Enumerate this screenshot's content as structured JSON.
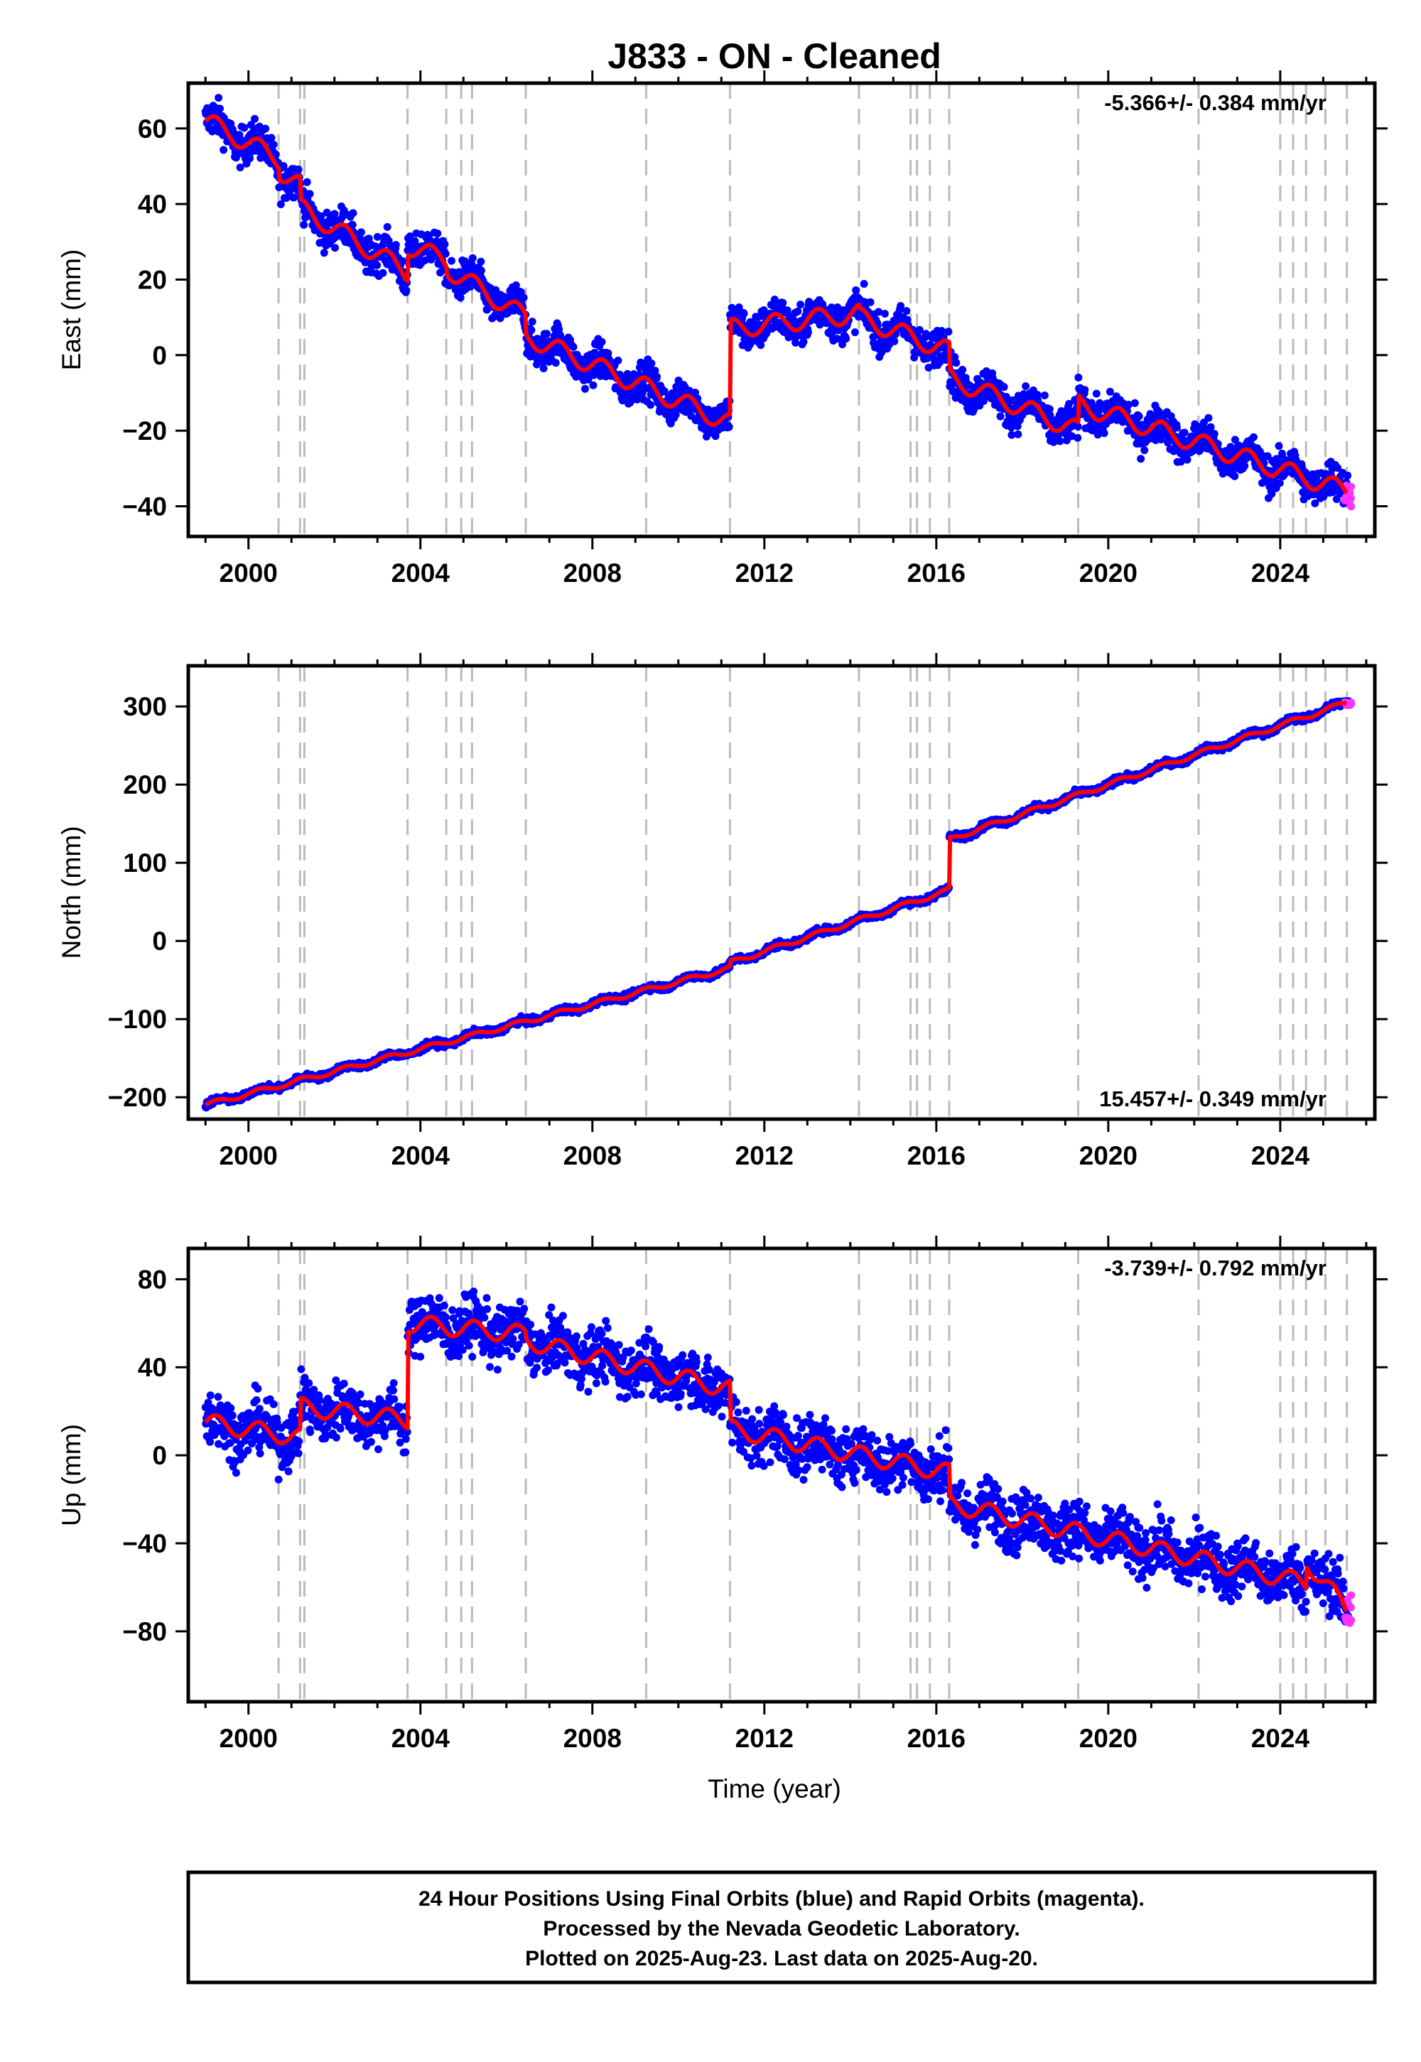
{
  "title": "J833  - ON - Cleaned",
  "x_axis": {
    "label": "Time (year)",
    "range": [
      1998.6,
      2026.2
    ],
    "ticks": [
      2000,
      2004,
      2008,
      2012,
      2016,
      2020,
      2024
    ],
    "tick_labels": [
      "2000",
      "2004",
      "2008",
      "2012",
      "2016",
      "2020",
      "2024"
    ]
  },
  "event_lines": [
    2000.7,
    2001.2,
    2001.3,
    2003.7,
    2004.6,
    2004.95,
    2005.2,
    2006.45,
    2009.25,
    2011.2,
    2014.2,
    2015.4,
    2015.55,
    2015.85,
    2016.3,
    2019.3,
    2022.1,
    2024.0,
    2024.3,
    2024.6,
    2025.05,
    2025.55
  ],
  "chart_data": [
    {
      "type": "scatter",
      "name": "east",
      "ylabel": "East (mm)",
      "ylim": [
        -48,
        72
      ],
      "yticks": [
        -40,
        -20,
        0,
        20,
        40,
        60
      ],
      "ytick_labels": [
        "−40",
        "−20",
        "0",
        "20",
        "40",
        "60"
      ],
      "rate_text": "-5.366+/- 0.384 mm/yr",
      "rate_position": "top-right",
      "model": {
        "segments": [
          {
            "start": 1999.0,
            "end": 2000.7,
            "v0": 62,
            "v1": 52
          },
          {
            "start": 2000.7,
            "end": 2001.2,
            "v0": 49,
            "v1": 45
          },
          {
            "start": 2001.2,
            "end": 2003.7,
            "v0": 39,
            "v1": 22
          },
          {
            "start": 2003.7,
            "end": 2004.6,
            "v0": 29,
            "v1": 25
          },
          {
            "start": 2004.6,
            "end": 2006.45,
            "v0": 23,
            "v1": 10
          },
          {
            "start": 2006.45,
            "end": 2011.2,
            "v0": 5,
            "v1": -18
          },
          {
            "start": 2011.2,
            "end": 2014.2,
            "v0": 7,
            "v1": 11
          },
          {
            "start": 2014.2,
            "end": 2016.3,
            "v0": 10,
            "v1": 1
          },
          {
            "start": 2016.3,
            "end": 2019.3,
            "v0": -6,
            "v1": -20
          },
          {
            "start": 2019.3,
            "end": 2025.55,
            "v0": -13,
            "v1": -36
          }
        ],
        "seasonal_amplitude": 2.5,
        "color": "#ff0000"
      },
      "scatter_spread": 3.5,
      "final_color": "#0000ff",
      "rapid_color": "#ff33ff"
    },
    {
      "type": "scatter",
      "name": "north",
      "ylabel": "North (mm)",
      "ylim": [
        -228,
        352
      ],
      "yticks": [
        -200,
        -100,
        0,
        100,
        200,
        300
      ],
      "ytick_labels": [
        "−200",
        "−100",
        "0",
        "100",
        "200",
        "300"
      ],
      "rate_text": "15.457+/- 0.349 mm/yr",
      "rate_position": "bottom-right",
      "model": {
        "segments": [
          {
            "start": 1999.0,
            "end": 2011.2,
            "v0": -210,
            "v1": -35
          },
          {
            "start": 2011.2,
            "end": 2016.3,
            "v0": -28,
            "v1": 65
          },
          {
            "start": 2016.3,
            "end": 2025.55,
            "v0": 130,
            "v1": 305
          }
        ],
        "seasonal_amplitude": 3,
        "color": "#ff0000"
      },
      "scatter_spread": 3,
      "final_color": "#0000ff",
      "rapid_color": "#ff33ff"
    },
    {
      "type": "scatter",
      "name": "up",
      "ylabel": "Up (mm)",
      "ylim": [
        -112,
        94
      ],
      "yticks": [
        -80,
        -40,
        0,
        40,
        80
      ],
      "ytick_labels": [
        "−80",
        "−40",
        "0",
        "40",
        "80"
      ],
      "rate_text": "-3.739+/- 0.792 mm/yr",
      "rate_position": "top-right",
      "model": {
        "segments": [
          {
            "start": 1999.0,
            "end": 2001.2,
            "v0": 15,
            "v1": 8
          },
          {
            "start": 2001.2,
            "end": 2003.7,
            "v0": 22,
            "v1": 16
          },
          {
            "start": 2003.7,
            "end": 2006.45,
            "v0": 60,
            "v1": 55
          },
          {
            "start": 2006.45,
            "end": 2011.2,
            "v0": 52,
            "v1": 30
          },
          {
            "start": 2011.2,
            "end": 2016.3,
            "v0": 12,
            "v1": -8
          },
          {
            "start": 2016.3,
            "end": 2024.6,
            "v0": -22,
            "v1": -58
          },
          {
            "start": 2024.6,
            "end": 2025.55,
            "v0": -48,
            "v1": -70
          }
        ],
        "seasonal_amplitude": 4,
        "color": "#ff0000"
      },
      "scatter_spread": 9,
      "final_color": "#0000ff",
      "rapid_color": "#ff33ff"
    }
  ],
  "footer": {
    "line1": "24 Hour Positions Using Final Orbits (blue) and Rapid Orbits (magenta).",
    "line2": "Processed by the Nevada Geodetic Laboratory.",
    "line3": "Plotted on 2025-Aug-23. Last data on 2025-Aug-20."
  }
}
